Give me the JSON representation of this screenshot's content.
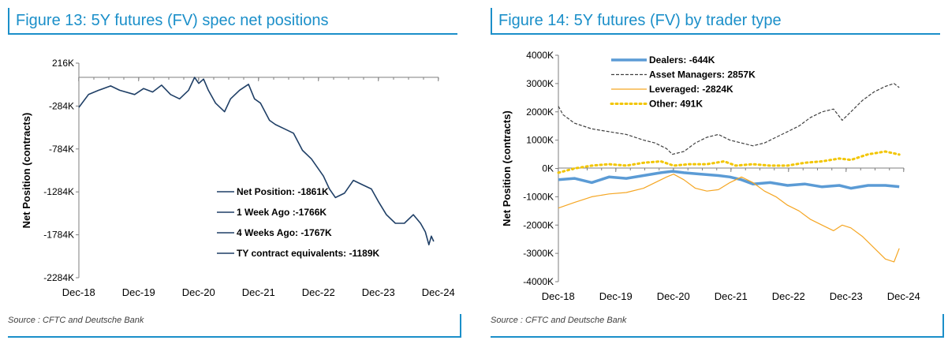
{
  "figures": [
    {
      "title": "Figure 13: 5Y futures (FV) spec net positions",
      "source": "Source : CFTC and Deutsche Bank"
    },
    {
      "title": "Figure 14: 5Y futures (FV) by trader type",
      "source": "Source : CFTC and Deutsche Bank"
    }
  ],
  "chart_data": [
    {
      "type": "line",
      "title": "Figure 13: 5Y futures (FV) spec net positions",
      "ylabel": "Net Position (contracts)",
      "xlabel": "",
      "x_ticks": [
        "Dec-18",
        "Dec-19",
        "Dec-20",
        "Dec-21",
        "Dec-22",
        "Dec-23",
        "Dec-24"
      ],
      "y_ticks": [
        "216K",
        "-284K",
        "-784K",
        "-1284K",
        "-1784K",
        "-2284K"
      ],
      "ylim": [
        -2284,
        216
      ],
      "x_range": [
        2018.92,
        2024.92
      ],
      "grid": false,
      "legend_position": "lower-right",
      "legend": [
        "Net Position: -1861K",
        "1 Week Ago :-1766K",
        "4 Weeks Ago: -1767K",
        "TY contract equivalents: -1189K"
      ],
      "series": [
        {
          "name": "Net Position",
          "color": "#1f3f66",
          "x": [
            2018.92,
            2019.08,
            2019.25,
            2019.45,
            2019.6,
            2019.85,
            2020.0,
            2020.15,
            2020.3,
            2020.45,
            2020.6,
            2020.75,
            2020.85,
            2020.92,
            2021.0,
            2021.08,
            2021.2,
            2021.35,
            2021.45,
            2021.6,
            2021.75,
            2021.85,
            2021.95,
            2022.1,
            2022.2,
            2022.35,
            2022.5,
            2022.65,
            2022.8,
            2022.9,
            2023.0,
            2023.1,
            2023.2,
            2023.35,
            2023.5,
            2023.65,
            2023.8,
            2023.92,
            2024.05,
            2024.2,
            2024.35,
            2024.5,
            2024.62,
            2024.7,
            2024.76,
            2024.8,
            2024.84
          ],
          "values": [
            -300,
            -150,
            -100,
            -50,
            -100,
            -150,
            -80,
            -120,
            -40,
            -150,
            -200,
            -100,
            50,
            -20,
            30,
            -100,
            -250,
            -350,
            -200,
            -100,
            -30,
            -200,
            -250,
            -450,
            -500,
            -550,
            -600,
            -800,
            -900,
            -1000,
            -1100,
            -1250,
            -1350,
            -1300,
            -1150,
            -1200,
            -1250,
            -1400,
            -1550,
            -1650,
            -1650,
            -1550,
            -1650,
            -1750,
            -1900,
            -1800,
            -1861
          ]
        }
      ]
    },
    {
      "type": "line",
      "title": "Figure 14: 5Y futures (FV) by trader type",
      "ylabel": "Net Position (contracts)",
      "xlabel": "",
      "x_ticks": [
        "Dec-18",
        "Dec-19",
        "Dec-20",
        "Dec-21",
        "Dec-22",
        "Dec-23",
        "Dec-24"
      ],
      "y_ticks": [
        "4000K",
        "3000K",
        "2000K",
        "1000K",
        "0K",
        "-1000K",
        "-2000K",
        "-3000K",
        "-4000K"
      ],
      "ylim": [
        -4000,
        4000
      ],
      "x_range": [
        2018.92,
        2024.92
      ],
      "grid": false,
      "legend_position": "top-left",
      "legend": [
        "Dealers: -644K",
        "Asset Managers: 2857K",
        "Leveraged: -2824K",
        "Other: 491K"
      ],
      "series": [
        {
          "name": "Dealers",
          "color": "#5b9bd5",
          "style": "solid-thick",
          "x": [
            2018.92,
            2019.2,
            2019.5,
            2019.8,
            2020.1,
            2020.4,
            2020.7,
            2020.9,
            2021.1,
            2021.4,
            2021.7,
            2021.9,
            2022.1,
            2022.3,
            2022.6,
            2022.9,
            2023.2,
            2023.5,
            2023.8,
            2024.0,
            2024.3,
            2024.6,
            2024.84
          ],
          "values": [
            -400,
            -350,
            -500,
            -300,
            -350,
            -250,
            -150,
            -100,
            -150,
            -200,
            -250,
            -300,
            -400,
            -550,
            -500,
            -600,
            -550,
            -650,
            -600,
            -700,
            -600,
            -600,
            -644
          ]
        },
        {
          "name": "Asset Managers",
          "color": "#404040",
          "style": "dashed",
          "x": [
            2018.92,
            2019.0,
            2019.2,
            2019.5,
            2019.8,
            2020.1,
            2020.4,
            2020.6,
            2020.8,
            2020.9,
            2021.1,
            2021.3,
            2021.5,
            2021.7,
            2021.9,
            2022.1,
            2022.3,
            2022.5,
            2022.7,
            2022.9,
            2023.1,
            2023.3,
            2023.5,
            2023.7,
            2023.85,
            2024.0,
            2024.2,
            2024.4,
            2024.6,
            2024.75,
            2024.84
          ],
          "values": [
            2200,
            1900,
            1600,
            1400,
            1300,
            1200,
            1000,
            900,
            700,
            500,
            600,
            900,
            1100,
            1200,
            1000,
            900,
            800,
            900,
            1100,
            1300,
            1500,
            1800,
            2000,
            2100,
            1700,
            2000,
            2400,
            2700,
            2900,
            3000,
            2857
          ]
        },
        {
          "name": "Leveraged",
          "color": "#f5a623",
          "style": "solid-thin",
          "x": [
            2018.92,
            2019.2,
            2019.5,
            2019.8,
            2020.1,
            2020.4,
            2020.6,
            2020.8,
            2020.92,
            2021.1,
            2021.3,
            2021.5,
            2021.7,
            2021.9,
            2022.1,
            2022.3,
            2022.5,
            2022.7,
            2022.9,
            2023.1,
            2023.3,
            2023.5,
            2023.7,
            2023.85,
            2024.0,
            2024.2,
            2024.4,
            2024.6,
            2024.75,
            2024.84
          ],
          "values": [
            -1400,
            -1200,
            -1000,
            -900,
            -850,
            -700,
            -500,
            -300,
            -200,
            -400,
            -700,
            -800,
            -750,
            -500,
            -300,
            -500,
            -800,
            -1000,
            -1300,
            -1500,
            -1800,
            -2000,
            -2200,
            -2000,
            -2100,
            -2400,
            -2800,
            -3200,
            -3300,
            -2824
          ]
        },
        {
          "name": "Other",
          "color": "#f2c500",
          "style": "dotted",
          "x": [
            2018.92,
            2019.2,
            2019.5,
            2019.8,
            2020.1,
            2020.4,
            2020.7,
            2020.92,
            2021.2,
            2021.5,
            2021.8,
            2022.0,
            2022.3,
            2022.6,
            2022.9,
            2023.2,
            2023.5,
            2023.8,
            2024.0,
            2024.3,
            2024.6,
            2024.84
          ],
          "values": [
            -150,
            0,
            100,
            150,
            100,
            200,
            250,
            100,
            150,
            150,
            250,
            100,
            150,
            100,
            100,
            200,
            250,
            350,
            300,
            500,
            600,
            491
          ]
        }
      ]
    }
  ]
}
